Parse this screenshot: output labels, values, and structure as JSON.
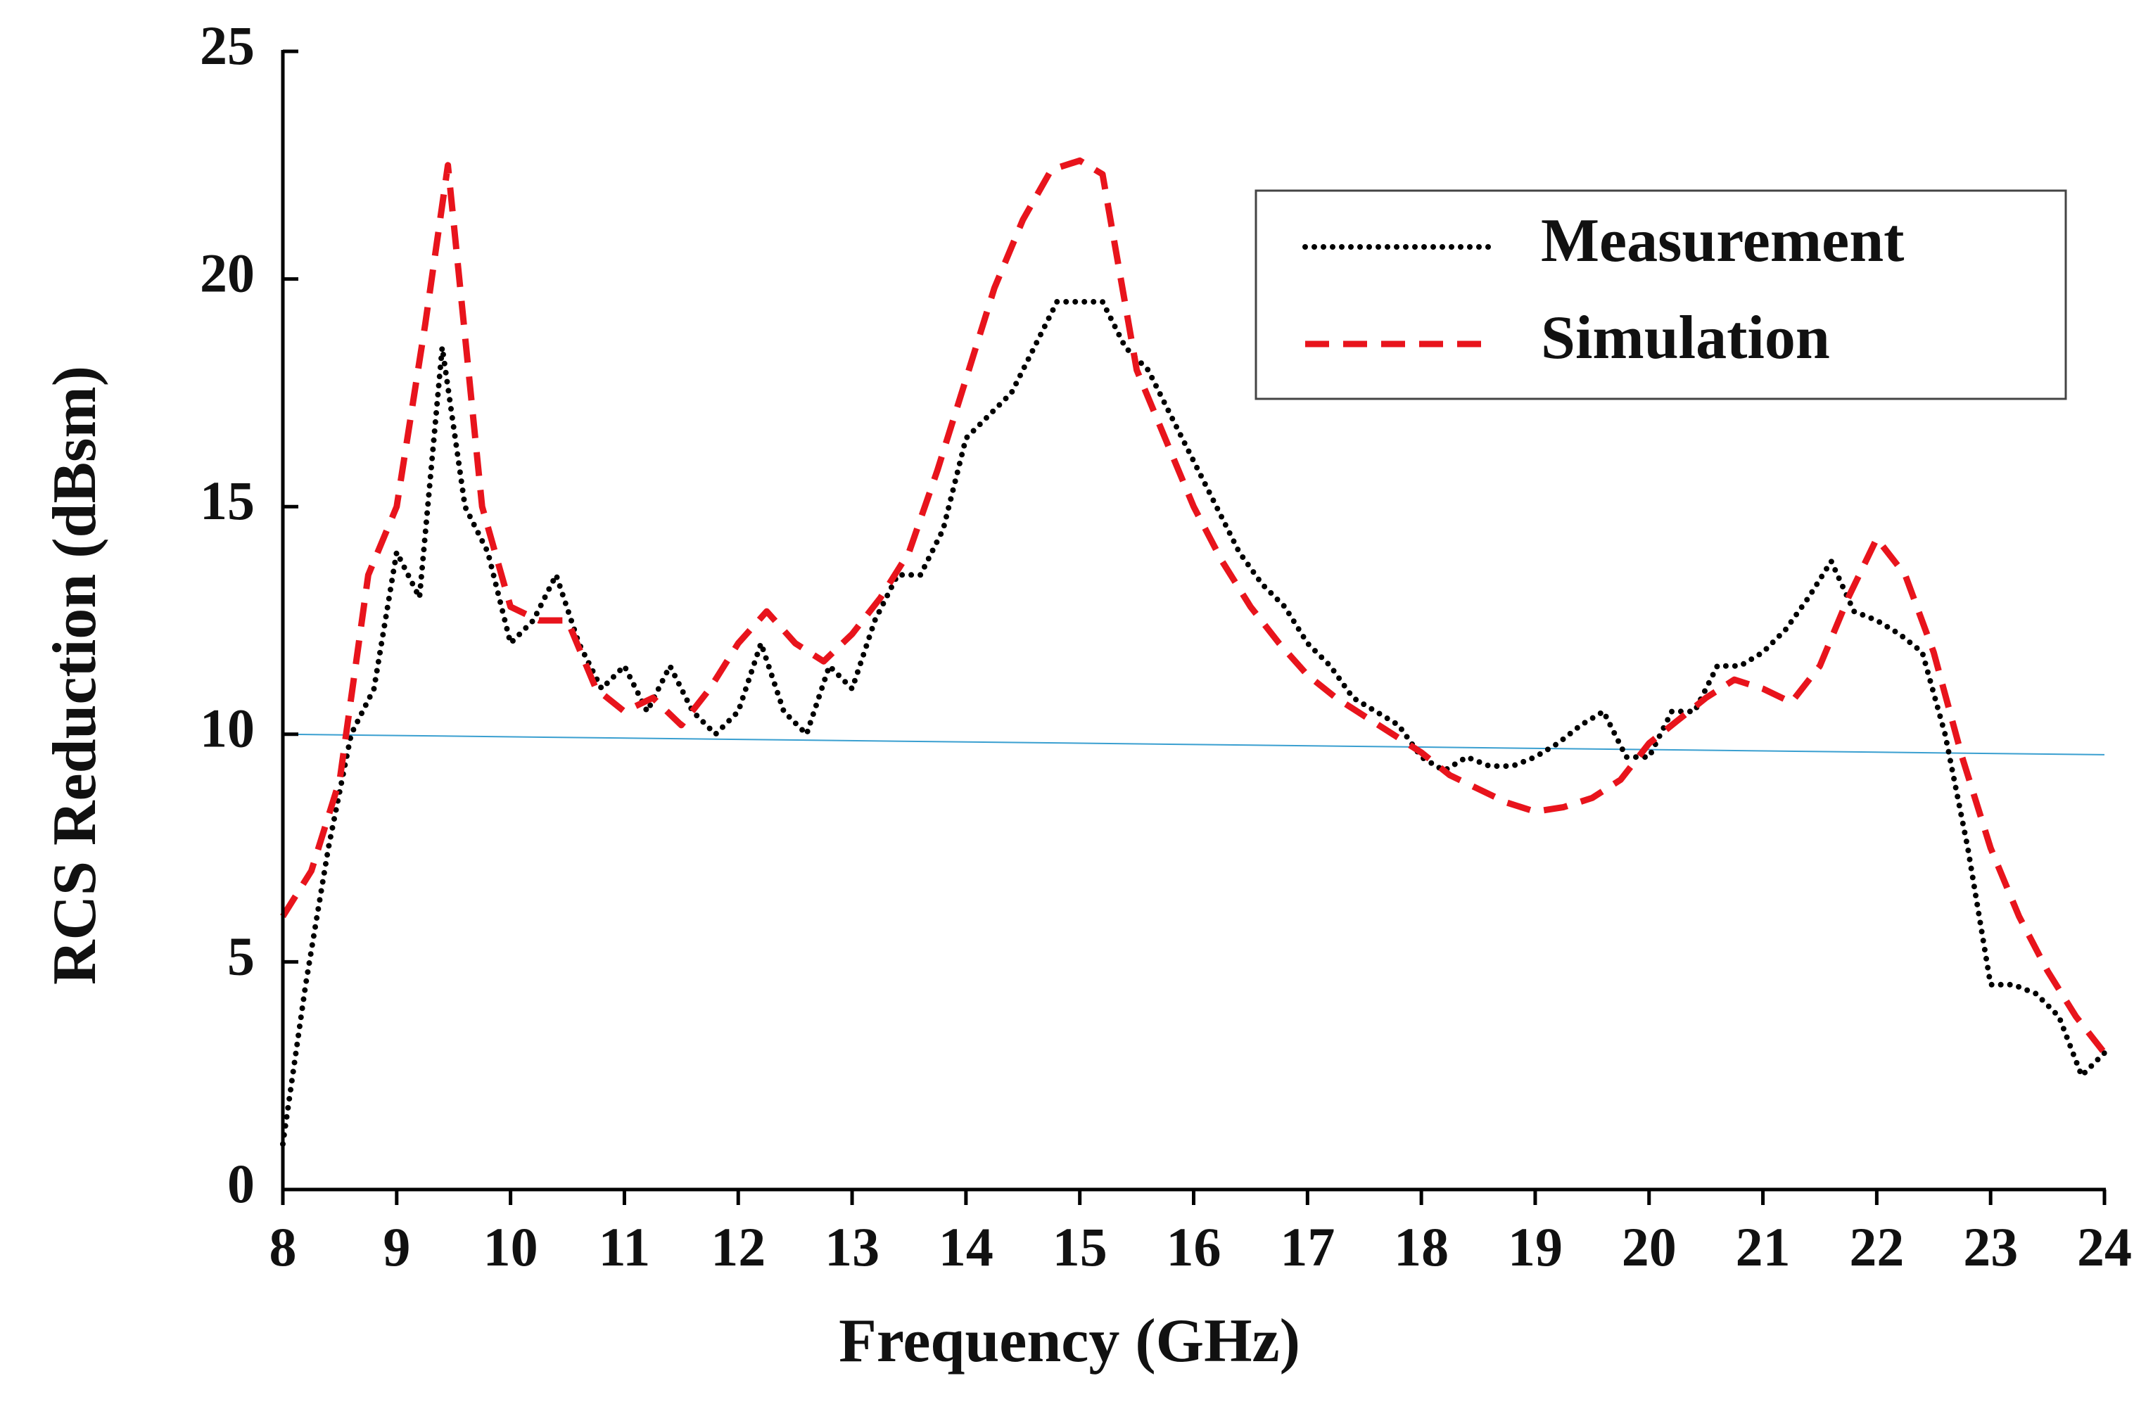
{
  "chart_data": {
    "type": "line",
    "xlabel": "Frequency (GHz)",
    "ylabel": "RCS Reduction (dBsm)",
    "xlim": [
      8,
      24
    ],
    "xticks": [
      8,
      9,
      10,
      11,
      12,
      13,
      14,
      15,
      16,
      17,
      18,
      19,
      20,
      21,
      22,
      23,
      24
    ],
    "ylim": [
      0,
      25
    ],
    "yticks": [
      0,
      5,
      10,
      15,
      20,
      25
    ],
    "legend": "upper right",
    "series": [
      {
        "name": "Measurement",
        "color": "#000000",
        "style": "dotted",
        "x": [
          8.0,
          8.2,
          8.4,
          8.6,
          8.8,
          9.0,
          9.2,
          9.4,
          9.6,
          9.8,
          10.0,
          10.2,
          10.4,
          10.6,
          10.8,
          11.0,
          11.2,
          11.4,
          11.6,
          11.8,
          12.0,
          12.2,
          12.4,
          12.6,
          12.8,
          13.0,
          13.2,
          13.4,
          13.6,
          13.8,
          14.0,
          14.2,
          14.4,
          14.6,
          14.8,
          15.0,
          15.2,
          15.4,
          15.6,
          15.8,
          16.0,
          16.2,
          16.4,
          16.6,
          16.8,
          17.0,
          17.2,
          17.4,
          17.6,
          17.8,
          18.0,
          18.2,
          18.4,
          18.6,
          18.8,
          19.0,
          19.2,
          19.4,
          19.6,
          19.8,
          20.0,
          20.2,
          20.4,
          20.6,
          20.8,
          21.0,
          21.2,
          21.4,
          21.6,
          21.8,
          22.0,
          22.2,
          22.4,
          22.6,
          22.8,
          23.0,
          23.2,
          23.4,
          23.6,
          23.8,
          24.0
        ],
        "values": [
          1,
          4.5,
          7.5,
          10,
          11,
          14,
          13,
          18.5,
          15,
          14,
          12,
          12.5,
          13.5,
          12,
          11,
          11.5,
          10.5,
          11.5,
          10.5,
          10,
          10.5,
          12,
          10.5,
          10,
          11.5,
          11,
          12.5,
          13.5,
          13.5,
          14.5,
          16.5,
          17,
          17.5,
          18.5,
          19.5,
          19.5,
          19.5,
          18.5,
          18,
          17,
          16,
          15,
          14,
          13.3,
          12.8,
          12,
          11.5,
          10.8,
          10.5,
          10.2,
          9.5,
          9.2,
          9.5,
          9.3,
          9.3,
          9.5,
          9.8,
          10.2,
          10.5,
          9.5,
          9.5,
          10.5,
          10.5,
          11.5,
          11.5,
          11.8,
          12.3,
          13,
          13.8,
          12.7,
          12.5,
          12.2,
          11.8,
          10,
          7.5,
          4.5,
          4.5,
          4.3,
          3.8,
          2.5,
          3
        ]
      },
      {
        "name": "Simulation",
        "color": "#e8141c",
        "style": "dashed",
        "x": [
          8.0,
          8.25,
          8.5,
          8.75,
          9.0,
          9.25,
          9.45,
          9.75,
          10.0,
          10.25,
          10.5,
          10.75,
          11.0,
          11.25,
          11.5,
          11.75,
          12.0,
          12.25,
          12.5,
          12.75,
          13.0,
          13.25,
          13.5,
          13.75,
          14.0,
          14.25,
          14.5,
          14.75,
          15.0,
          15.2,
          15.5,
          15.75,
          16.0,
          16.25,
          16.5,
          16.75,
          17.0,
          17.25,
          17.5,
          17.75,
          18.0,
          18.25,
          18.5,
          18.75,
          19.0,
          19.25,
          19.5,
          19.75,
          20.0,
          20.25,
          20.5,
          20.75,
          21.0,
          21.25,
          21.5,
          21.75,
          22.0,
          22.25,
          22.5,
          22.75,
          23.0,
          23.25,
          23.5,
          23.75,
          24.0
        ],
        "values": [
          6,
          7,
          9,
          13.5,
          15,
          19,
          22.5,
          15,
          12.8,
          12.5,
          12.5,
          11,
          10.5,
          10.8,
          10.2,
          11,
          12,
          12.7,
          12,
          11.6,
          12.2,
          13,
          14,
          15.8,
          17.8,
          19.8,
          21.3,
          22.4,
          22.6,
          22.3,
          18,
          16.5,
          15,
          13.8,
          12.8,
          12,
          11.3,
          10.8,
          10.4,
          10,
          9.6,
          9.1,
          8.8,
          8.5,
          8.3,
          8.4,
          8.6,
          9,
          9.8,
          10.3,
          10.8,
          11.2,
          11,
          10.7,
          11.5,
          13,
          14.3,
          13.5,
          11.8,
          9.5,
          7.5,
          6,
          4.8,
          3.8,
          3
        ]
      }
    ],
    "reference_line": {
      "x": [
        8,
        24
      ],
      "values": [
        10,
        9.55
      ],
      "color": "#3a9fd0"
    }
  }
}
